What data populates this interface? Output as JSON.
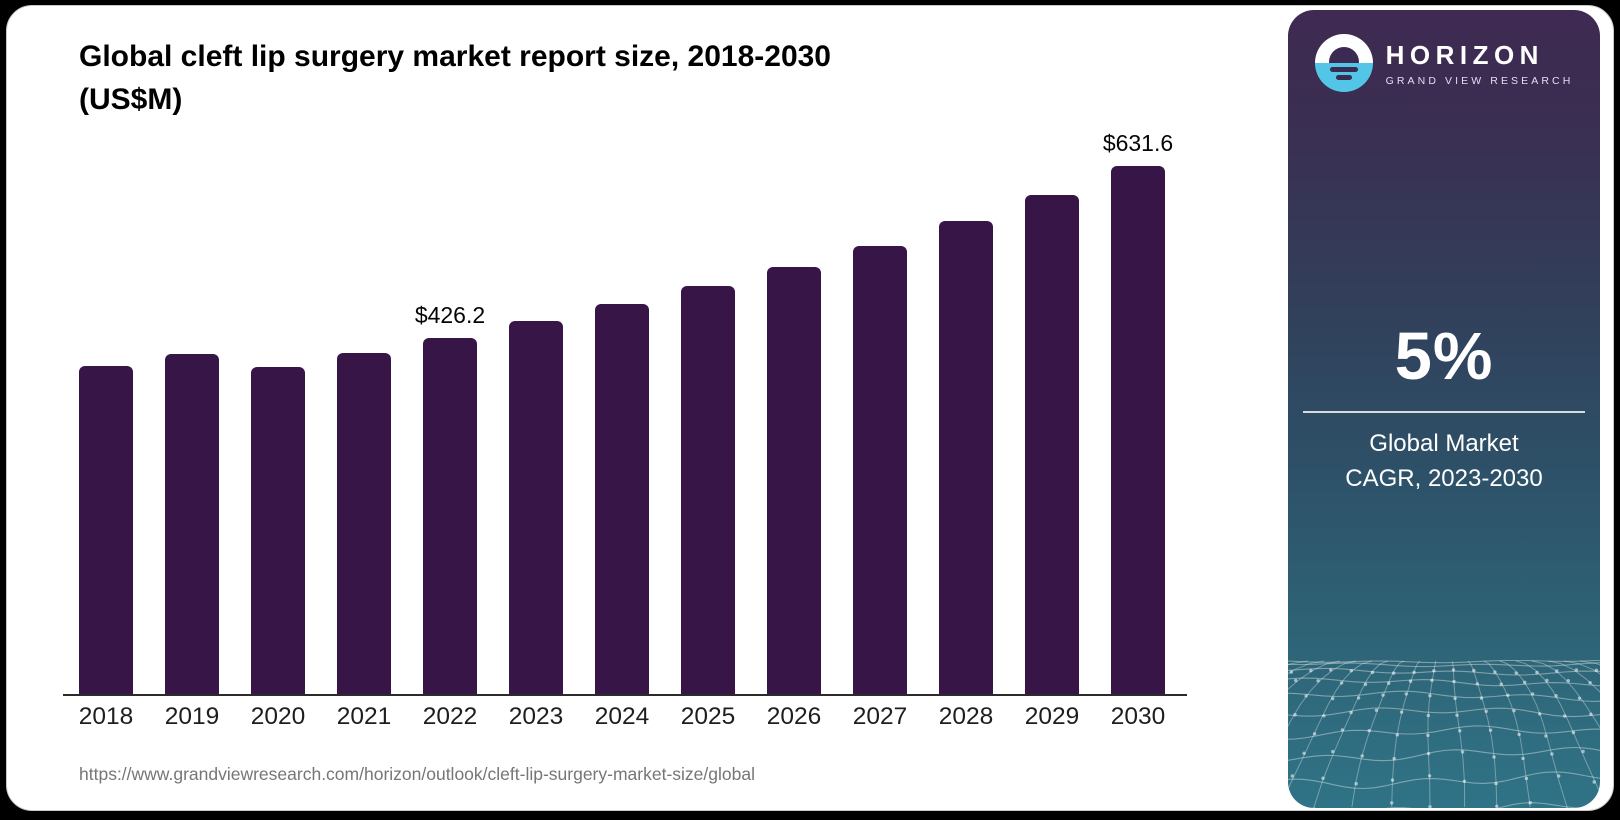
{
  "page": {
    "title_line1": "Global cleft lip surgery market report size, 2018-2030",
    "title_line2": "(US$M)",
    "source_url": "https://www.grandviewresearch.com/horizon/outlook/cleft-lip-surgery-market-size/global"
  },
  "chart_data": {
    "type": "bar",
    "title": "Global cleft lip surgery market report size, 2018-2030 (US$M)",
    "categories": [
      "2018",
      "2019",
      "2020",
      "2021",
      "2022",
      "2023",
      "2024",
      "2025",
      "2026",
      "2027",
      "2028",
      "2029",
      "2030"
    ],
    "values": [
      392.8,
      407.9,
      391.9,
      409.1,
      426.2,
      446.5,
      466.8,
      488.3,
      511.3,
      536.8,
      566.2,
      598.1,
      631.6
    ],
    "labels": {
      "2022": "$426.2",
      "2030": "$631.6"
    },
    "value_prefix": "$",
    "xlabel": "",
    "ylabel": "US$M",
    "ylim": [
      0,
      680
    ],
    "grid": false,
    "legend": "none",
    "bar_color": "#371647"
  },
  "sidebar": {
    "brand": {
      "name": "HORIZON",
      "tagline": "GRAND VIEW RESEARCH"
    },
    "stat": {
      "value": "5%",
      "caption_line1": "Global Market",
      "caption_line2": "CAGR, 2023-2030"
    },
    "colors": {
      "panel_top": "#3e2a52",
      "panel_bottom": "#307386",
      "logo_blue": "#53c6e8",
      "text": "#ffffff"
    }
  }
}
